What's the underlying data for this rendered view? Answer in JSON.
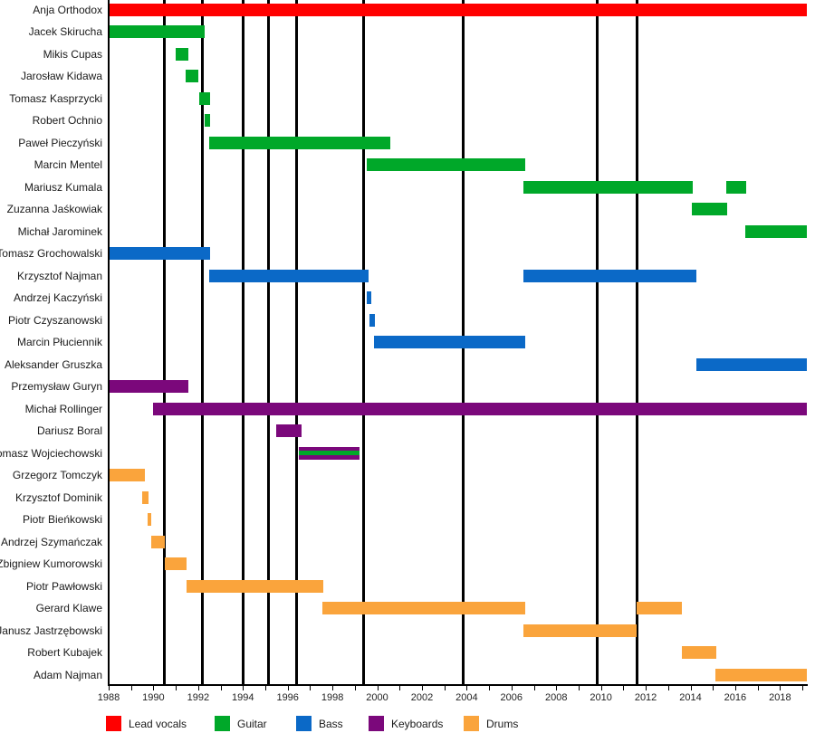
{
  "chart_data": {
    "type": "timeline",
    "colors": {
      "vocals": "#ff0000",
      "guitar": "#00a829",
      "bass": "#0b69c7",
      "keyboards": "#7b087b",
      "drums": "#faa43c"
    },
    "legend": [
      {
        "role": "vocals",
        "label": "Lead vocals"
      },
      {
        "role": "guitar",
        "label": "Guitar"
      },
      {
        "role": "bass",
        "label": "Bass"
      },
      {
        "role": "keyboards",
        "label": "Keyboards"
      },
      {
        "role": "drums",
        "label": "Drums"
      }
    ],
    "x_axis": {
      "start_year": 1988,
      "end_year": 2019.2,
      "labeled_tick_years": [
        1988,
        1990,
        1992,
        1994,
        1996,
        1998,
        2000,
        2002,
        2004,
        2006,
        2008,
        2010,
        2012,
        2014,
        2016,
        2018
      ],
      "minor_tick_every": 1
    },
    "event_line_years": [
      1990.5,
      1992.2,
      1994.0,
      1995.15,
      1996.4,
      1999.4,
      2003.85,
      2009.85,
      2011.6
    ],
    "members": [
      {
        "name": "Anja Orthodox",
        "bars": [
          {
            "role": "vocals",
            "start": 1988.0,
            "end": 2019.2
          }
        ]
      },
      {
        "name": "Jacek Skirucha",
        "bars": [
          {
            "role": "guitar",
            "start": 1988.0,
            "end": 1992.3
          }
        ]
      },
      {
        "name": "Mikis Cupas",
        "bars": [
          {
            "role": "guitar",
            "start": 1991.0,
            "end": 1991.55
          }
        ]
      },
      {
        "name": "Jarosław Kidawa",
        "bars": [
          {
            "role": "guitar",
            "start": 1991.45,
            "end": 1992.0
          }
        ]
      },
      {
        "name": "Tomasz Kasprzycki",
        "bars": [
          {
            "role": "guitar",
            "start": 1992.05,
            "end": 1992.55
          }
        ]
      },
      {
        "name": "Robert Ochnio",
        "bars": [
          {
            "role": "guitar",
            "start": 1992.3,
            "end": 1992.55
          }
        ]
      },
      {
        "name": "Paweł Pieczyński",
        "bars": [
          {
            "role": "guitar",
            "start": 1992.5,
            "end": 2000.6
          }
        ]
      },
      {
        "name": "Marcin Mentel",
        "bars": [
          {
            "role": "guitar",
            "start": 1999.55,
            "end": 2006.6
          }
        ]
      },
      {
        "name": "Mariusz Kumala",
        "bars": [
          {
            "role": "guitar",
            "start": 2006.55,
            "end": 2014.1
          },
          {
            "role": "guitar",
            "start": 2015.6,
            "end": 2016.5
          }
        ]
      },
      {
        "name": "Zuzanna Jaśkowiak",
        "bars": [
          {
            "role": "guitar",
            "start": 2014.05,
            "end": 2015.65
          }
        ]
      },
      {
        "name": "Michał Jarominek",
        "bars": [
          {
            "role": "guitar",
            "start": 2016.45,
            "end": 2019.2
          }
        ]
      },
      {
        "name": "Tomasz Grochowalski",
        "bars": [
          {
            "role": "bass",
            "start": 1988.0,
            "end": 1992.55
          }
        ]
      },
      {
        "name": "Krzysztof Najman",
        "bars": [
          {
            "role": "bass",
            "start": 1992.5,
            "end": 1999.6
          },
          {
            "role": "bass",
            "start": 2006.55,
            "end": 2014.25
          }
        ]
      },
      {
        "name": "Andrzej Kaczyński",
        "bars": [
          {
            "role": "bass",
            "start": 1999.55,
            "end": 1999.75
          }
        ]
      },
      {
        "name": "Piotr Czyszanowski",
        "bars": [
          {
            "role": "bass",
            "start": 1999.65,
            "end": 1999.9
          }
        ]
      },
      {
        "name": "Marcin Płuciennik",
        "bars": [
          {
            "role": "bass",
            "start": 1999.85,
            "end": 2006.6
          }
        ]
      },
      {
        "name": "Aleksander Gruszka",
        "bars": [
          {
            "role": "bass",
            "start": 2014.25,
            "end": 2019.2
          }
        ]
      },
      {
        "name": "Przemysław Guryn",
        "bars": [
          {
            "role": "keyboards",
            "start": 1988.0,
            "end": 1991.55
          }
        ]
      },
      {
        "name": "Michał Rollinger",
        "bars": [
          {
            "role": "keyboards",
            "start": 1990.0,
            "end": 2019.2
          }
        ]
      },
      {
        "name": "Dariusz Boral",
        "bars": [
          {
            "role": "keyboards",
            "start": 1995.5,
            "end": 1996.6
          }
        ]
      },
      {
        "name": "Tomasz Wojciechowski",
        "bars": [
          {
            "role": "keyboards",
            "start": 1996.5,
            "end": 1999.2,
            "stripe": "guitar"
          }
        ]
      },
      {
        "name": "Grzegorz Tomczyk",
        "bars": [
          {
            "role": "drums",
            "start": 1988.0,
            "end": 1989.6
          }
        ]
      },
      {
        "name": "Krzysztof Dominik",
        "bars": [
          {
            "role": "drums",
            "start": 1989.5,
            "end": 1989.8
          }
        ]
      },
      {
        "name": "Piotr Bieńkowski",
        "bars": [
          {
            "role": "drums",
            "start": 1989.75,
            "end": 1989.9
          }
        ]
      },
      {
        "name": "Andrzej Szymańczak",
        "bars": [
          {
            "role": "drums",
            "start": 1989.9,
            "end": 1990.5
          }
        ]
      },
      {
        "name": "Zbigniew Kumorowski",
        "bars": [
          {
            "role": "drums",
            "start": 1990.5,
            "end": 1991.5
          }
        ]
      },
      {
        "name": "Piotr Pawłowski",
        "bars": [
          {
            "role": "drums",
            "start": 1991.5,
            "end": 1997.6
          }
        ]
      },
      {
        "name": "Gerard Klawe",
        "bars": [
          {
            "role": "drums",
            "start": 1997.55,
            "end": 2006.6
          },
          {
            "role": "drums",
            "start": 2011.6,
            "end": 2013.6
          }
        ]
      },
      {
        "name": "Janusz Jastrzębowski",
        "bars": [
          {
            "role": "drums",
            "start": 2006.55,
            "end": 2011.6
          }
        ]
      },
      {
        "name": "Robert Kubajek",
        "bars": [
          {
            "role": "drums",
            "start": 2013.6,
            "end": 2015.15
          }
        ]
      },
      {
        "name": "Adam Najman",
        "bars": [
          {
            "role": "drums",
            "start": 2015.1,
            "end": 2019.2
          }
        ]
      }
    ]
  }
}
